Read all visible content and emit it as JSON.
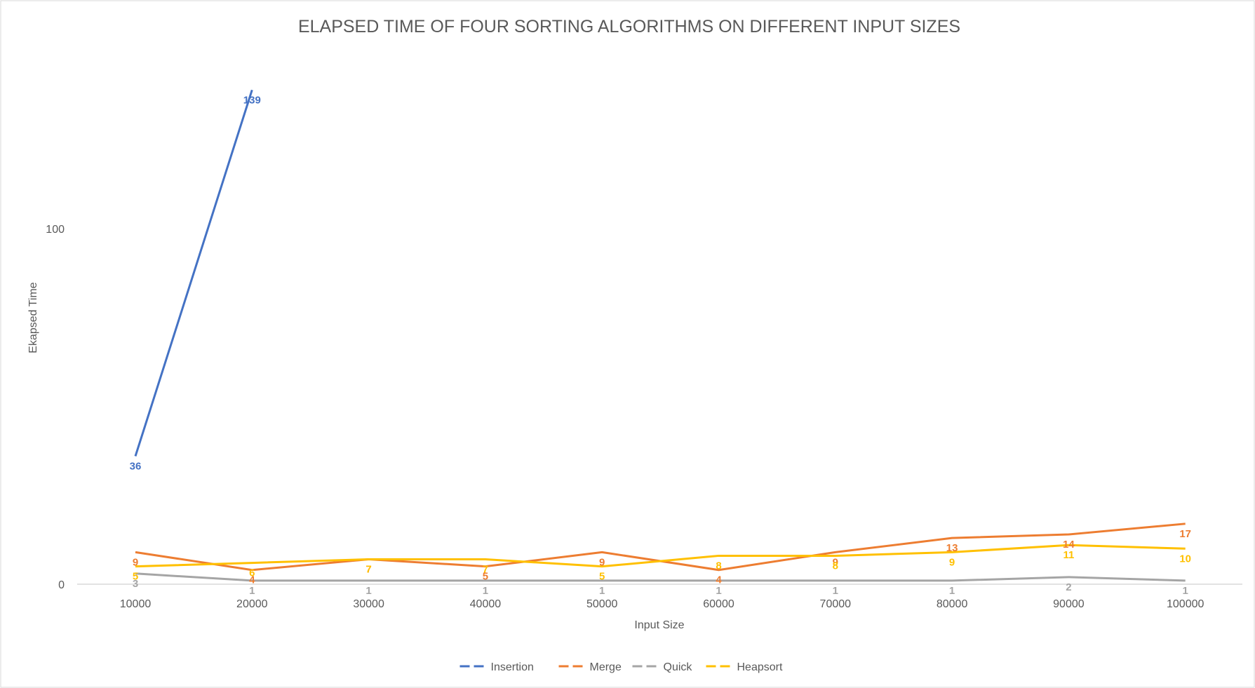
{
  "chart_data": {
    "type": "line",
    "title": "ELAPSED TIME OF FOUR SORTING ALGORITHMS ON DIFFERENT INPUT SIZES",
    "xlabel": "Input Size",
    "ylabel": "Ekapsed Time",
    "categories": [
      "10000",
      "20000",
      "30000",
      "40000",
      "50000",
      "60000",
      "70000",
      "80000",
      "90000",
      "100000"
    ],
    "yticks": [
      "0",
      "100"
    ],
    "ylim": [
      0,
      150
    ],
    "grid": false,
    "legend_position": "bottom",
    "series": [
      {
        "name": "Insertion",
        "color": "#4472C4",
        "values": [
          36,
          139,
          null,
          null,
          null,
          null,
          null,
          null,
          null,
          null
        ]
      },
      {
        "name": "Merge",
        "color": "#ED7D31",
        "values": [
          9,
          4,
          7,
          5,
          9,
          4,
          9,
          13,
          14,
          17
        ]
      },
      {
        "name": "Quick",
        "color": "#A5A5A5",
        "values": [
          3,
          1,
          1,
          1,
          1,
          1,
          1,
          1,
          2,
          1
        ]
      },
      {
        "name": "Heapsort",
        "color": "#FFC000",
        "values": [
          5,
          6,
          7,
          7,
          5,
          8,
          8,
          9,
          11,
          10
        ]
      }
    ]
  }
}
